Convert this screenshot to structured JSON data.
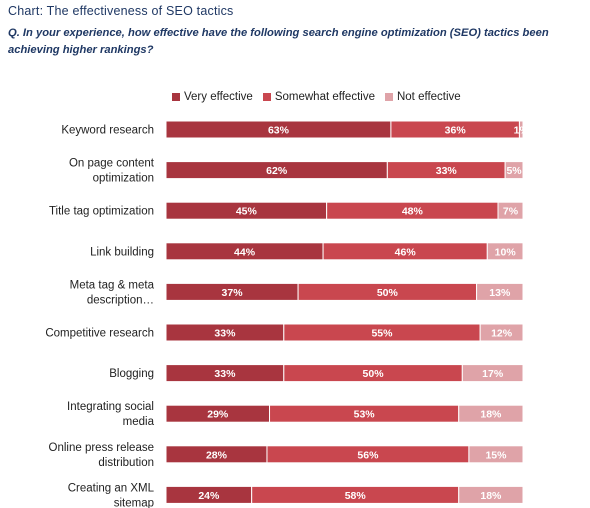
{
  "title": "Chart: The effectiveness of SEO tactics",
  "subtitle": "Q. In your experience, how effective have the following search engine optimization (SEO) tactics been achieving higher rankings?",
  "colors": {
    "very": "#a8353f",
    "somewhat": "#c9474f",
    "not": "#dfa3a8"
  },
  "chart_data": {
    "type": "bar",
    "orientation": "horizontal",
    "stacked": true,
    "percent_stacked": true,
    "legend_position": "top",
    "categories": [
      "Keyword research",
      "On page content optimization",
      "Title tag optimization",
      "Link building",
      "Meta tag & meta description…",
      "Competitive research",
      "Blogging",
      "Integrating social media",
      "Online press release distribution",
      "Creating an XML sitemap"
    ],
    "category_lines": [
      [
        "Keyword research"
      ],
      [
        "On page content",
        "optimization"
      ],
      [
        "Title tag optimization"
      ],
      [
        "Link building"
      ],
      [
        "Meta tag & meta",
        "description…"
      ],
      [
        "Competitive research"
      ],
      [
        "Blogging"
      ],
      [
        "Integrating social",
        "media"
      ],
      [
        "Online press release",
        "distribution"
      ],
      [
        "Creating an XML",
        "sitemap"
      ]
    ],
    "series": [
      {
        "name": "Very effective",
        "values": [
          63,
          62,
          45,
          44,
          37,
          33,
          33,
          29,
          28,
          24
        ]
      },
      {
        "name": "Somewhat effective",
        "values": [
          36,
          33,
          48,
          46,
          50,
          55,
          50,
          53,
          56,
          58
        ]
      },
      {
        "name": "Not effective",
        "values": [
          1,
          5,
          7,
          10,
          13,
          12,
          17,
          18,
          15,
          18
        ]
      }
    ],
    "value_labels": [
      [
        "63%",
        "62%",
        "45%",
        "44%",
        "37%",
        "33%",
        "33%",
        "29%",
        "28%",
        "24%"
      ],
      [
        "36%",
        "33%",
        "48%",
        "46%",
        "50%",
        "55%",
        "50%",
        "53%",
        "56%",
        "58%"
      ],
      [
        "1%",
        "5%",
        "7%",
        "10%",
        "13%",
        "12%",
        "17%",
        "18%",
        "15%",
        "18%"
      ]
    ]
  }
}
